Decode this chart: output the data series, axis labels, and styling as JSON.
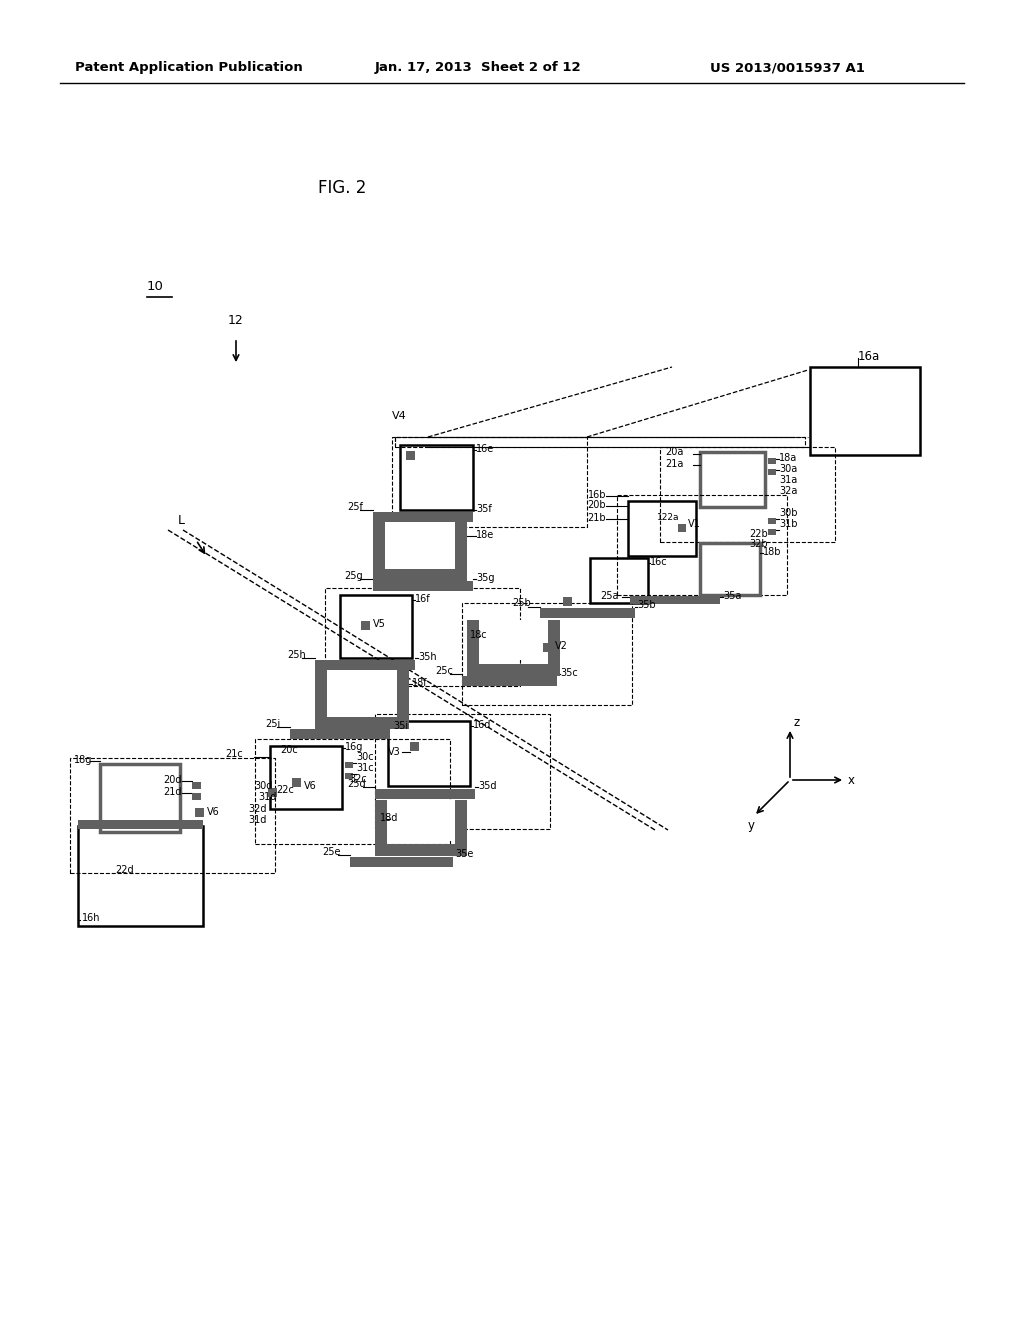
{
  "bg_color": "#ffffff",
  "header_text": "Patent Application Publication",
  "header_date": "Jan. 17, 2013  Sheet 2 of 12",
  "header_patent": "US 2013/0015937 A1",
  "fig_label": "FIG. 2",
  "dark_fill": "#606060",
  "med_fill": "#808080"
}
